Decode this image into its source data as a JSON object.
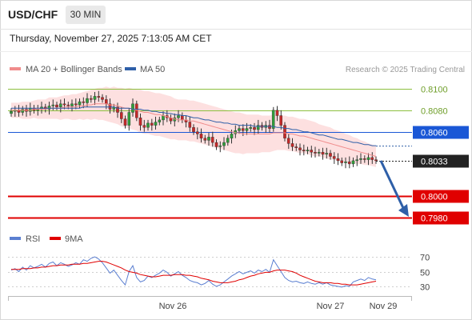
{
  "header": {
    "symbol": "USD/CHF",
    "timeframe": "30 MIN",
    "datetime": "Thursday, November 27, 2025 7:13:05 AM CET"
  },
  "legend": {
    "items": [
      {
        "label": "MA 20 + Bollinger Bands",
        "color": "#f08c8c"
      },
      {
        "label": "MA 50",
        "color": "#2e5fa8"
      }
    ],
    "credit": "Research © 2025 Trading Central"
  },
  "rsi_legend": {
    "items": [
      {
        "label": "RSI",
        "color": "#5b7fd1"
      },
      {
        "label": "9MA",
        "color": "#e00000"
      }
    ]
  },
  "chart_data": [
    {
      "type": "candlestick",
      "ylim": [
        0.7975,
        0.811
      ],
      "price_levels": [
        {
          "value": 0.81,
          "label": "0.8100",
          "kind": "resistance",
          "color": "#8cbf3f"
        },
        {
          "value": 0.808,
          "label": "0.8080",
          "kind": "resistance",
          "color": "#8cbf3f"
        },
        {
          "value": 0.806,
          "label": "0.8060",
          "kind": "pivot",
          "color": "#1a57d6"
        },
        {
          "value": 0.8033,
          "label": "0.8033",
          "kind": "last",
          "color": "#222222"
        },
        {
          "value": 0.8,
          "label": "0.8000",
          "kind": "support",
          "color": "#e00000"
        },
        {
          "value": 0.798,
          "label": "0.7980",
          "kind": "support",
          "color": "#e00000"
        }
      ],
      "x_ticks": [
        "Nov 26",
        "Nov 27",
        "Nov 29"
      ],
      "close": [
        0.8079,
        0.808,
        0.8078,
        0.8081,
        0.8079,
        0.8082,
        0.808,
        0.8081,
        0.8083,
        0.8081,
        0.8084,
        0.8085,
        0.8083,
        0.8086,
        0.8085,
        0.8084,
        0.8086,
        0.8085,
        0.8088,
        0.8087,
        0.8091,
        0.809,
        0.8093,
        0.8092,
        0.809,
        0.8086,
        0.8081,
        0.8083,
        0.8078,
        0.8072,
        0.8066,
        0.8078,
        0.8086,
        0.8073,
        0.8066,
        0.8064,
        0.8068,
        0.8066,
        0.8069,
        0.8071,
        0.8075,
        0.8073,
        0.807,
        0.8073,
        0.8075,
        0.8071,
        0.8069,
        0.8064,
        0.806,
        0.8058,
        0.8054,
        0.8052,
        0.8055,
        0.805,
        0.8046,
        0.8047,
        0.805,
        0.8054,
        0.8058,
        0.8061,
        0.8063,
        0.8061,
        0.8063,
        0.8064,
        0.8062,
        0.8066,
        0.8064,
        0.8066,
        0.8063,
        0.808,
        0.8075,
        0.8066,
        0.8054,
        0.8049,
        0.8046,
        0.8045,
        0.8043,
        0.8042,
        0.8043,
        0.8041,
        0.804,
        0.8041,
        0.8039,
        0.804,
        0.8037,
        0.8035,
        0.8033,
        0.8031,
        0.8032,
        0.803,
        0.8033,
        0.8034,
        0.8035,
        0.8034,
        0.8036,
        0.8034,
        0.8033
      ],
      "ma20": [
        0.808,
        0.808,
        0.808,
        0.808,
        0.808,
        0.808,
        0.8081,
        0.8081,
        0.8081,
        0.8081,
        0.8082,
        0.8082,
        0.8082,
        0.8082,
        0.8083,
        0.8083,
        0.8083,
        0.8083,
        0.8084,
        0.8084,
        0.8085,
        0.8085,
        0.8086,
        0.8086,
        0.8086,
        0.8086,
        0.8085,
        0.8085,
        0.8084,
        0.8083,
        0.8082,
        0.8082,
        0.8081,
        0.808,
        0.8079,
        0.8078,
        0.8078,
        0.8077,
        0.8076,
        0.8076,
        0.8075,
        0.8074,
        0.8073,
        0.8072,
        0.8071,
        0.8071,
        0.8071,
        0.807,
        0.807,
        0.8069,
        0.8068,
        0.8067,
        0.8066,
        0.8065,
        0.8064,
        0.8063,
        0.8062,
        0.8061,
        0.806,
        0.8059,
        0.8059,
        0.8058,
        0.8058,
        0.8058,
        0.8058,
        0.8058,
        0.8058,
        0.8058,
        0.8058,
        0.8059,
        0.8059,
        0.8059,
        0.8059,
        0.8058,
        0.8058,
        0.8057,
        0.8056,
        0.8056,
        0.8055,
        0.8054,
        0.8053,
        0.8052,
        0.8051,
        0.805,
        0.8049,
        0.8048,
        0.8047,
        0.8046,
        0.8045,
        0.8044,
        0.8043,
        0.8042,
        0.8041,
        0.804,
        0.8039,
        0.8038,
        0.8037
      ],
      "ma50": [
        0.8082,
        0.8082,
        0.8082,
        0.8082,
        0.8082,
        0.8082,
        0.8082,
        0.8082,
        0.8082,
        0.8082,
        0.8082,
        0.8082,
        0.8082,
        0.8082,
        0.8082,
        0.8082,
        0.8082,
        0.8082,
        0.8082,
        0.8083,
        0.8083,
        0.8083,
        0.8083,
        0.8083,
        0.8083,
        0.8083,
        0.8083,
        0.8083,
        0.8082,
        0.8082,
        0.8082,
        0.8082,
        0.8081,
        0.8081,
        0.8081,
        0.808,
        0.808,
        0.8079,
        0.8079,
        0.8078,
        0.8078,
        0.8077,
        0.8077,
        0.8076,
        0.8076,
        0.8075,
        0.8075,
        0.8074,
        0.8073,
        0.8073,
        0.8072,
        0.8071,
        0.8071,
        0.807,
        0.8069,
        0.8069,
        0.8068,
        0.8068,
        0.8067,
        0.8067,
        0.8066,
        0.8066,
        0.8066,
        0.8066,
        0.8065,
        0.8065,
        0.8065,
        0.8065,
        0.8065,
        0.8065,
        0.8064,
        0.8064,
        0.8063,
        0.8063,
        0.8062,
        0.8062,
        0.8061,
        0.806,
        0.806,
        0.8059,
        0.8058,
        0.8057,
        0.8057,
        0.8056,
        0.8055,
        0.8054,
        0.8053,
        0.8053,
        0.8052,
        0.8051,
        0.805,
        0.805,
        0.8049,
        0.8048,
        0.8048,
        0.8047,
        0.8047
      ],
      "bb_width": [
        0.0007,
        0.0007,
        0.0007,
        0.0008,
        0.0008,
        0.0008,
        0.0008,
        0.0009,
        0.0009,
        0.0009,
        0.001,
        0.001,
        0.001,
        0.0011,
        0.0011,
        0.0011,
        0.0012,
        0.0012,
        0.0012,
        0.0013,
        0.0013,
        0.0014,
        0.0014,
        0.0015,
        0.0015,
        0.0016,
        0.0016,
        0.0017,
        0.0017,
        0.0018,
        0.0018,
        0.0019,
        0.0019,
        0.0019,
        0.002,
        0.002,
        0.002,
        0.002,
        0.002,
        0.002,
        0.002,
        0.002,
        0.002,
        0.0019,
        0.0019,
        0.0019,
        0.0019,
        0.0019,
        0.0019,
        0.0019,
        0.0019,
        0.0019,
        0.0019,
        0.0019,
        0.0019,
        0.0019,
        0.0019,
        0.0019,
        0.0019,
        0.0019,
        0.0019,
        0.0019,
        0.0018,
        0.0018,
        0.0018,
        0.0018,
        0.0017,
        0.0017,
        0.0017,
        0.0017,
        0.0016,
        0.0016,
        0.0016,
        0.0016,
        0.0016,
        0.0016,
        0.0016,
        0.0016,
        0.0016,
        0.0016,
        0.0016,
        0.0015,
        0.0015,
        0.0015,
        0.0015,
        0.0014,
        0.0014,
        0.0014,
        0.0013,
        0.0013,
        0.0012,
        0.0012,
        0.0011,
        0.0011,
        0.001,
        0.001,
        0.001
      ],
      "forecast": {
        "from": 0.8033,
        "to": 0.798,
        "direction": "down"
      }
    },
    {
      "type": "line",
      "ylim": [
        20,
        80
      ],
      "y_ticks": [
        "70",
        "50",
        "30"
      ],
      "y_tick_values": [
        70,
        50,
        30
      ],
      "series": [
        {
          "name": "RSI",
          "color": "#5b7fd1",
          "values": [
            52,
            54,
            50,
            56,
            52,
            58,
            55,
            57,
            60,
            56,
            61,
            63,
            58,
            62,
            60,
            57,
            59,
            62,
            60,
            66,
            64,
            68,
            70,
            67,
            62,
            55,
            48,
            52,
            45,
            38,
            32,
            50,
            58,
            42,
            36,
            38,
            44,
            42,
            45,
            48,
            52,
            49,
            44,
            47,
            50,
            45,
            42,
            38,
            36,
            35,
            32,
            34,
            38,
            33,
            30,
            32,
            36,
            40,
            44,
            47,
            50,
            47,
            49,
            51,
            48,
            52,
            50,
            53,
            49,
            66,
            58,
            50,
            42,
            38,
            36,
            37,
            35,
            34,
            36,
            34,
            33,
            35,
            33,
            35,
            32,
            31,
            30,
            29,
            31,
            30,
            36,
            38,
            40,
            38,
            42,
            40,
            39
          ]
        },
        {
          "name": "9MA",
          "color": "#e00000",
          "values": [
            53,
            53,
            53,
            54,
            54,
            54,
            55,
            55,
            56,
            56,
            57,
            58,
            58,
            59,
            59,
            59,
            60,
            60,
            60,
            61,
            61,
            62,
            63,
            64,
            64,
            63,
            61,
            59,
            57,
            55,
            52,
            50,
            49,
            48,
            46,
            45,
            44,
            43,
            43,
            44,
            45,
            45,
            45,
            46,
            46,
            46,
            45,
            45,
            44,
            43,
            41,
            40,
            39,
            37,
            36,
            35,
            35,
            35,
            36,
            37,
            39,
            40,
            42,
            44,
            45,
            47,
            48,
            49,
            49,
            51,
            52,
            52,
            52,
            51,
            50,
            48,
            45,
            43,
            41,
            39,
            37,
            36,
            35,
            35,
            35,
            34,
            34,
            33,
            33,
            32,
            32,
            32,
            33,
            34,
            35,
            36,
            37
          ]
        }
      ]
    }
  ]
}
